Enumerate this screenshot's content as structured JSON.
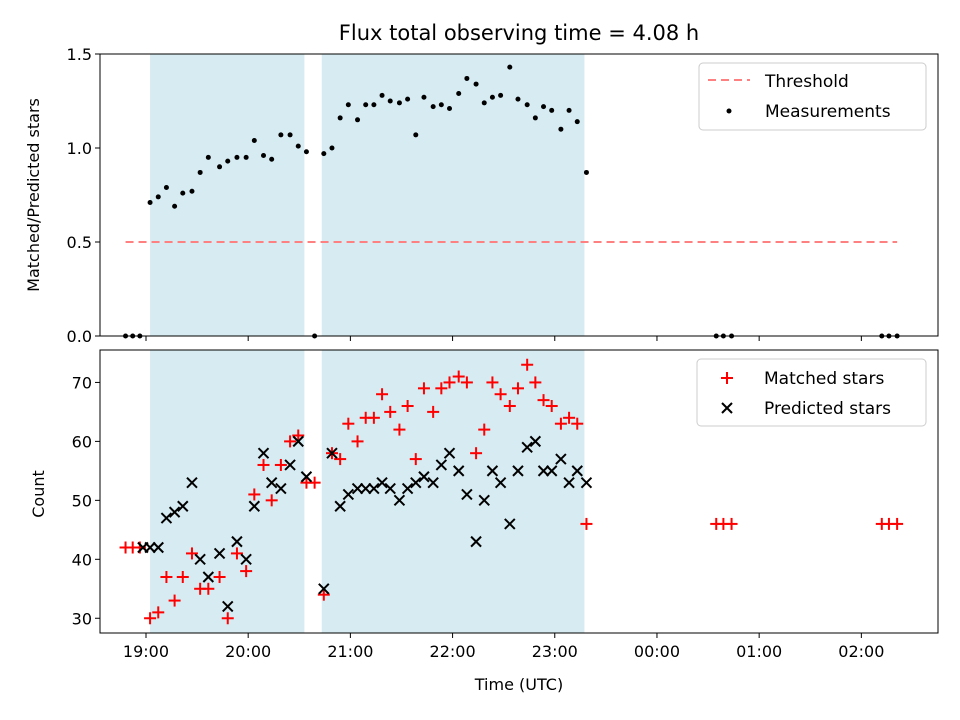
{
  "chart_data": [
    {
      "type": "scatter",
      "title": "Flux total observing time = 4.08 h",
      "xlabel": "",
      "ylabel": "Matched/Predicted stars",
      "xlim": [
        18.55,
        26.75
      ],
      "ylim": [
        0.0,
        1.5
      ],
      "yticks": [
        0.0,
        0.5,
        1.0,
        1.5
      ],
      "ytick_labels": [
        "0.0",
        "0.5",
        "1.0",
        "1.5"
      ],
      "shaded_intervals": [
        [
          19.04,
          20.55
        ],
        [
          20.72,
          23.29
        ]
      ],
      "colors": {
        "threshold": "#ff8080",
        "measurements": "#000000",
        "shade": "#add8e6"
      },
      "legend": {
        "location": "upper right",
        "threshold_label": "Threshold",
        "measurements_label": "Measurements"
      },
      "series": [
        {
          "name": "Threshold",
          "kind": "dashed-line",
          "x": [
            18.8,
            26.35
          ],
          "y": [
            0.5,
            0.5
          ]
        },
        {
          "name": "Measurements",
          "kind": "points",
          "x": [
            18.8,
            18.87,
            18.94,
            19.04,
            19.12,
            19.2,
            19.28,
            19.36,
            19.45,
            19.53,
            19.61,
            19.72,
            19.8,
            19.89,
            19.98,
            20.06,
            20.15,
            20.23,
            20.32,
            20.41,
            20.49,
            20.57,
            20.65,
            20.74,
            20.82,
            20.9,
            20.98,
            21.07,
            21.15,
            21.23,
            21.31,
            21.39,
            21.48,
            21.56,
            21.64,
            21.72,
            21.81,
            21.89,
            21.97,
            22.06,
            22.14,
            22.23,
            22.31,
            22.39,
            22.47,
            22.56,
            22.64,
            22.73,
            22.81,
            22.89,
            22.97,
            23.06,
            23.14,
            23.22,
            23.31,
            24.58,
            24.65,
            24.73,
            26.2,
            26.27,
            26.35
          ],
          "y": [
            0.0,
            0.0,
            0.0,
            0.71,
            0.74,
            0.79,
            0.69,
            0.76,
            0.77,
            0.87,
            0.95,
            0.9,
            0.93,
            0.95,
            0.95,
            1.04,
            0.96,
            0.94,
            1.07,
            1.07,
            1.01,
            0.98,
            0.0,
            0.97,
            1.0,
            1.16,
            1.23,
            1.15,
            1.23,
            1.23,
            1.28,
            1.25,
            1.24,
            1.26,
            1.07,
            1.27,
            1.22,
            1.23,
            1.21,
            1.29,
            1.37,
            1.34,
            1.24,
            1.27,
            1.28,
            1.43,
            1.26,
            1.23,
            1.16,
            1.22,
            1.2,
            1.1,
            1.2,
            1.14,
            0.87,
            0.0,
            0.0,
            0.0,
            0.0,
            0.0,
            0.0
          ]
        }
      ]
    },
    {
      "type": "scatter",
      "title": "",
      "xlabel": "Time (UTC)",
      "ylabel": "Count",
      "xlim": [
        18.55,
        26.75
      ],
      "ylim": [
        27.5,
        75.5
      ],
      "yticks": [
        30,
        40,
        50,
        60,
        70
      ],
      "ytick_labels": [
        "30",
        "40",
        "50",
        "60",
        "70"
      ],
      "xticks": [
        19,
        20,
        21,
        22,
        23,
        24,
        25,
        26
      ],
      "xtick_labels": [
        "19:00",
        "20:00",
        "21:00",
        "22:00",
        "23:00",
        "00:00",
        "01:00",
        "02:00"
      ],
      "shaded_intervals": [
        [
          19.04,
          20.55
        ],
        [
          20.72,
          23.29
        ]
      ],
      "colors": {
        "matched": "#ff0000",
        "predicted": "#000000",
        "shade": "#add8e6"
      },
      "legend": {
        "location": "upper right",
        "matched_label": "Matched stars",
        "predicted_label": "Predicted stars"
      },
      "series": [
        {
          "name": "Matched stars",
          "marker": "+",
          "x": [
            18.8,
            18.87,
            18.94,
            19.04,
            19.12,
            19.2,
            19.28,
            19.36,
            19.45,
            19.53,
            19.61,
            19.72,
            19.8,
            19.89,
            19.98,
            20.06,
            20.15,
            20.23,
            20.32,
            20.41,
            20.49,
            20.57,
            20.65,
            20.74,
            20.82,
            20.9,
            20.98,
            21.07,
            21.15,
            21.23,
            21.31,
            21.39,
            21.48,
            21.56,
            21.64,
            21.72,
            21.81,
            21.89,
            21.97,
            22.06,
            22.14,
            22.23,
            22.31,
            22.39,
            22.47,
            22.56,
            22.64,
            22.73,
            22.81,
            22.89,
            22.97,
            23.06,
            23.14,
            23.22,
            23.31,
            24.58,
            24.65,
            24.73,
            26.2,
            26.27,
            26.35
          ],
          "y": [
            42,
            42,
            42,
            30,
            31,
            37,
            33,
            37,
            41,
            35,
            35,
            37,
            30,
            41,
            38,
            51,
            56,
            50,
            56,
            60,
            61,
            53,
            53,
            34,
            58,
            57,
            63,
            60,
            64,
            64,
            68,
            65,
            62,
            66,
            57,
            69,
            65,
            69,
            70,
            71,
            70,
            58,
            62,
            70,
            68,
            66,
            69,
            73,
            70,
            67,
            66,
            63,
            64,
            63,
            46,
            46,
            46,
            46,
            46,
            46,
            46
          ]
        },
        {
          "name": "Predicted stars",
          "marker": "x",
          "x": [
            18.97,
            19.04,
            19.12,
            19.2,
            19.28,
            19.36,
            19.45,
            19.53,
            19.61,
            19.72,
            19.8,
            19.89,
            19.98,
            20.06,
            20.15,
            20.23,
            20.32,
            20.41,
            20.49,
            20.57,
            20.74,
            20.82,
            20.9,
            20.98,
            21.07,
            21.15,
            21.23,
            21.31,
            21.39,
            21.48,
            21.56,
            21.64,
            21.72,
            21.81,
            21.89,
            21.97,
            22.06,
            22.14,
            22.23,
            22.31,
            22.39,
            22.47,
            22.56,
            22.64,
            22.73,
            22.81,
            22.89,
            22.97,
            23.06,
            23.14,
            23.22,
            23.31
          ],
          "y": [
            42,
            42,
            42,
            47,
            48,
            49,
            53,
            40,
            37,
            41,
            32,
            43,
            40,
            49,
            58,
            53,
            52,
            56,
            60,
            54,
            35,
            58,
            49,
            51,
            52,
            52,
            52,
            53,
            52,
            50,
            52,
            53,
            54,
            53,
            56,
            58,
            55,
            51,
            43,
            50,
            55,
            53,
            46,
            55,
            59,
            60,
            55,
            55,
            57,
            53,
            55,
            53
          ]
        }
      ]
    }
  ]
}
